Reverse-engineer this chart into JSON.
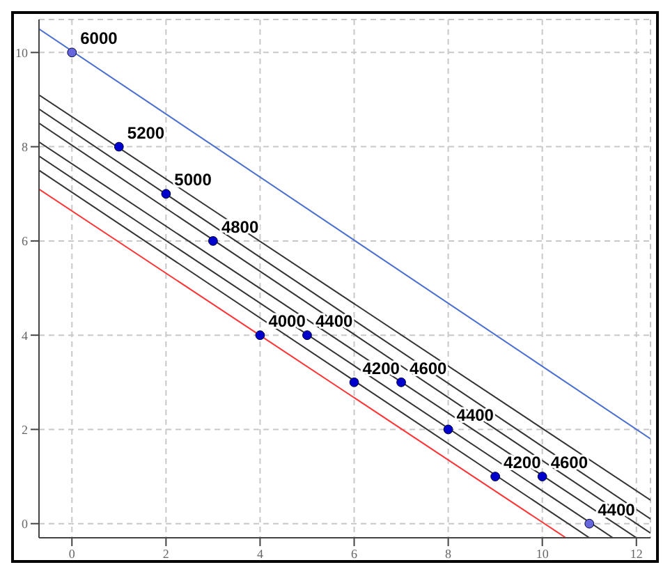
{
  "chart_data": {
    "type": "scatter",
    "xlim": [
      -0.7,
      12.3
    ],
    "ylim": [
      -0.3,
      10.7
    ],
    "xticks": [
      0,
      2,
      4,
      6,
      8,
      10,
      12
    ],
    "yticks": [
      0,
      2,
      4,
      6,
      8,
      10
    ],
    "grid": true,
    "marker": "circle",
    "series": [
      {
        "type": "line",
        "marker": "none",
        "color": "#4a6fd0",
        "x": [
          -0.7,
          12.3
        ],
        "values": [
          10.5,
          1.8
        ]
      },
      {
        "type": "line",
        "marker": "none",
        "color": "#333333",
        "x": [
          -0.7,
          12.3
        ],
        "values": [
          9.1,
          0.5
        ]
      },
      {
        "type": "line",
        "marker": "none",
        "color": "#333333",
        "x": [
          -0.7,
          12.3
        ],
        "values": [
          8.8,
          0.1
        ]
      },
      {
        "type": "line",
        "marker": "none",
        "color": "#333333",
        "x": [
          -0.7,
          12.3
        ],
        "values": [
          8.5,
          -0.2
        ]
      },
      {
        "type": "line",
        "marker": "none",
        "color": "#333333",
        "x": [
          -0.7,
          12
        ],
        "values": [
          8.1,
          -0.3
        ]
      },
      {
        "type": "line",
        "marker": "none",
        "color": "#333333",
        "x": [
          -0.7,
          11.5
        ],
        "values": [
          7.8,
          -0.3
        ]
      },
      {
        "type": "line",
        "marker": "none",
        "color": "#333333",
        "x": [
          -0.7,
          11
        ],
        "values": [
          7.5,
          -0.3
        ]
      },
      {
        "type": "line",
        "marker": "none",
        "color": "#ff3333",
        "x": [
          -0.7,
          10.5
        ],
        "values": [
          7.1,
          -0.3
        ]
      },
      {
        "color": "#0000cc",
        "x": [
          0,
          1,
          2,
          3,
          4,
          5,
          6,
          7,
          8,
          9,
          10,
          11
        ],
        "values": [
          10,
          8,
          7,
          6,
          4,
          4,
          3,
          3,
          2,
          1,
          1,
          0
        ],
        "colors": [
          "#6666dd",
          "#0000cc",
          "#0000cc",
          "#0000cc",
          "#0000cc",
          "#0000cc",
          "#0000cc",
          "#0000cc",
          "#0000cc",
          "#0000cc",
          "#0000cc",
          "#6666dd"
        ]
      }
    ],
    "annotations": [
      {
        "text": "6000",
        "x": 0,
        "y": 10
      },
      {
        "text": "5200",
        "x": 1,
        "y": 8
      },
      {
        "text": "5000",
        "x": 2,
        "y": 7
      },
      {
        "text": "4800",
        "x": 3,
        "y": 6
      },
      {
        "text": "4000",
        "x": 4,
        "y": 4
      },
      {
        "text": "4400",
        "x": 5,
        "y": 4
      },
      {
        "text": "4200",
        "x": 6,
        "y": 3
      },
      {
        "text": "4600",
        "x": 7,
        "y": 3
      },
      {
        "text": "4400",
        "x": 8,
        "y": 2
      },
      {
        "text": "4200",
        "x": 9,
        "y": 1
      },
      {
        "text": "4600",
        "x": 10,
        "y": 1
      },
      {
        "text": "4400",
        "x": 11,
        "y": 0
      }
    ]
  }
}
